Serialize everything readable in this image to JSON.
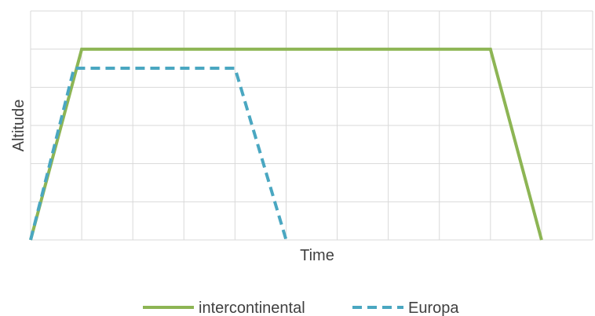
{
  "chart_data": {
    "type": "line",
    "title": "",
    "xlabel": "Time",
    "ylabel": "Altitude",
    "xlim": [
      0,
      11
    ],
    "ylim": [
      0,
      6
    ],
    "grid": true,
    "legend_position": "bottom",
    "series": [
      {
        "name": "intercontinental",
        "color": "#8db554",
        "line_style": "solid",
        "x": [
          0,
          1,
          9,
          10
        ],
        "y": [
          0,
          5,
          5,
          0
        ]
      },
      {
        "name": "Europa",
        "color": "#4aa7c1",
        "line_style": "dashed",
        "x": [
          0,
          0.85,
          4,
          5
        ],
        "y": [
          0,
          4.5,
          4.5,
          0
        ]
      }
    ]
  }
}
